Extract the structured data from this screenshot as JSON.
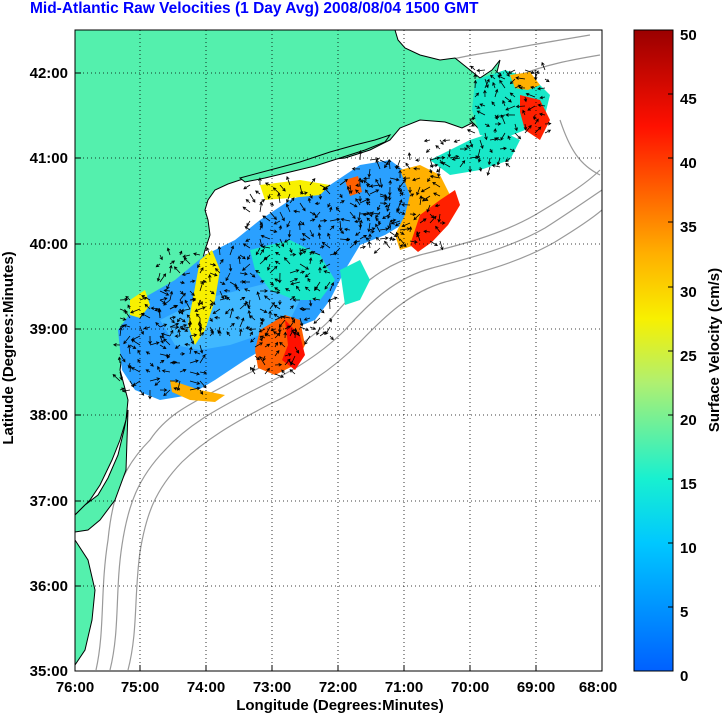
{
  "title": "Mid-Atlantic Raw Velocities (1 Day Avg) 2008/08/04 1500 GMT",
  "colors": {
    "land": "#54f0ad",
    "contour": "#9a9a9a",
    "title": "#0000ff"
  },
  "chart_data": {
    "type": "heatmap",
    "title": "Mid-Atlantic Raw Velocities (1 Day Avg) 2008/08/04 1500 GMT",
    "xlabel": "Longitude (Degrees:Minutes)",
    "ylabel": "Latitude (Degrees:Minutes)",
    "colorbar_label": "Surface Velocity (cm/s)",
    "x_ticks": [
      "76:00",
      "75:00",
      "74:00",
      "73:00",
      "72:00",
      "71:00",
      "70:00",
      "69:00",
      "68:00"
    ],
    "y_ticks": [
      "35:00",
      "36:00",
      "37:00",
      "38:00",
      "39:00",
      "40:00",
      "41:00",
      "42:00"
    ],
    "colorbar_ticks": [
      "0",
      "5",
      "10",
      "15",
      "20",
      "25",
      "30",
      "35",
      "40",
      "45",
      "50"
    ],
    "xlim": [
      -76,
      -68
    ],
    "ylim": [
      35,
      42.5
    ],
    "clim": [
      0,
      50
    ],
    "grid": "dotted",
    "colormap": "jet"
  }
}
